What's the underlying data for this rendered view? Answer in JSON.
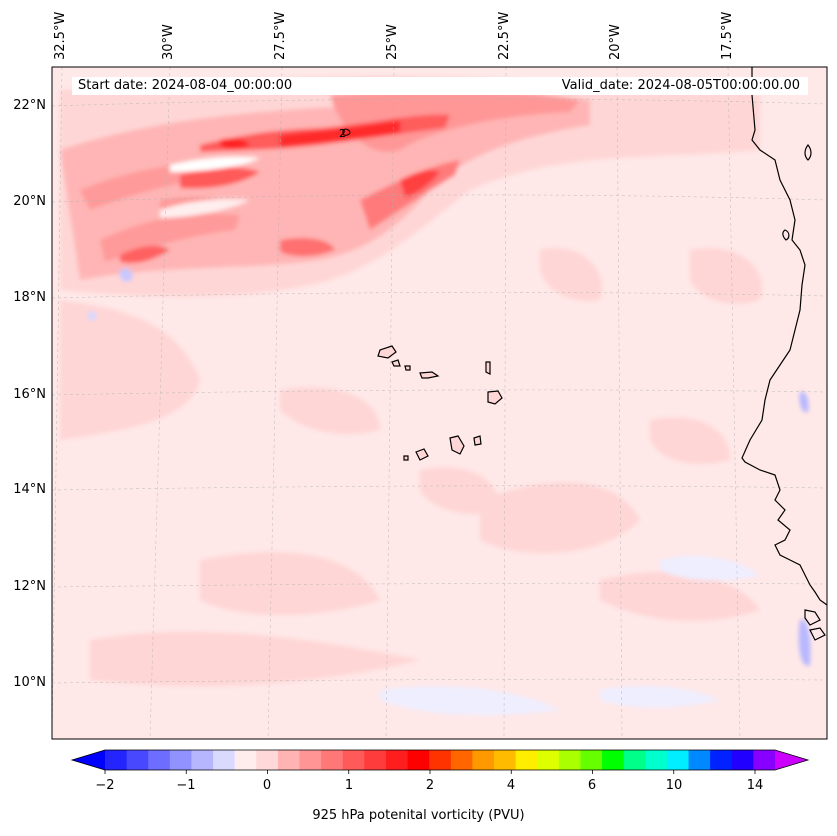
{
  "map": {
    "start_date": "Start date: 2024-08-04_00:00:00",
    "valid_date": "Valid_date: 2024-08-05T00:00:00.00",
    "longitude_labels": [
      "32.5°W",
      "30°W",
      "27.5°W",
      "25°W",
      "22.5°W",
      "20°W",
      "17.5°W"
    ],
    "latitude_labels": [
      "22°N",
      "20°N",
      "18°N",
      "16°N",
      "14°N",
      "12°N",
      "10°N"
    ],
    "contour_label": "2",
    "field": "925 hPa potential vorticity",
    "gridlines": true
  },
  "colorbar": {
    "title": "925 hPa potenital vorticity (PVU)",
    "tick_labels": [
      "−2",
      "−1",
      "0",
      "1",
      "2",
      "4",
      "6",
      "10",
      "14"
    ],
    "colors": [
      "#0000ff",
      "#2424ff",
      "#4848ff",
      "#6d6dff",
      "#9191ff",
      "#b6b6ff",
      "#dadaff",
      "#ffecec",
      "#ffd9d9",
      "#ffb3b3",
      "#ff9595",
      "#ff7878",
      "#ff5a5a",
      "#ff3c3c",
      "#ff1e1e",
      "#ff0000",
      "#ff3300",
      "#ff6600",
      "#ff9900",
      "#ffbb00",
      "#ffee00",
      "#ddff00",
      "#aaff00",
      "#66ff00",
      "#00ff00",
      "#00ff88",
      "#00ffcc",
      "#00eeff",
      "#0088ff",
      "#0022ff",
      "#2200ff",
      "#8800ff",
      "#cc00ff"
    ],
    "extend": "both"
  }
}
